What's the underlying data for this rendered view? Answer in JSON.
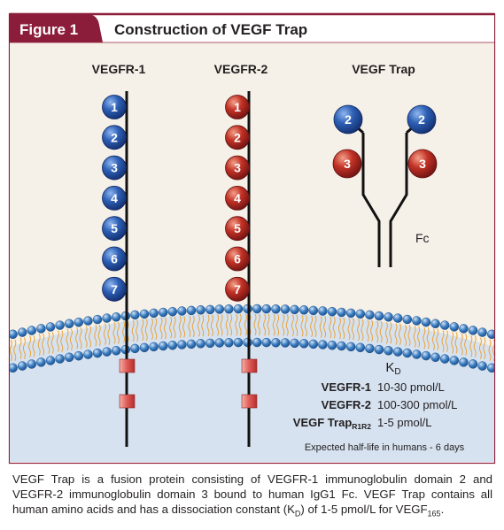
{
  "header": {
    "badge": "Figure 1",
    "title": "Construction of VEGF Trap"
  },
  "labels": {
    "vegfr1": "VEGFR-1",
    "vegfr2": "VEGFR-2",
    "trap": "VEGF Trap",
    "fc": "Fc"
  },
  "domains_r1": [
    "1",
    "2",
    "3",
    "4",
    "5",
    "6",
    "7"
  ],
  "domains_r2": [
    "1",
    "2",
    "3",
    "4",
    "5",
    "6",
    "7"
  ],
  "trap_domains": {
    "left_top": "2",
    "right_top": "2",
    "left_bottom": "3",
    "right_bottom": "3"
  },
  "kd": {
    "heading": "K",
    "heading_sub": "D",
    "rows": [
      {
        "name": "VEGFR-1",
        "name_sub": "",
        "value": "10-30 pmol/L"
      },
      {
        "name": "VEGFR-2",
        "name_sub": "",
        "value": "100-300 pmol/L"
      },
      {
        "name": "VEGF Trap",
        "name_sub": "R1R2",
        "value": "1-5 pmol/L"
      }
    ],
    "half_life": "Expected half-life in humans - 6 days"
  },
  "caption": {
    "part1": "VEGF Trap is a fusion protein consisting of VEGFR-1 immunoglobulin domain 2 and VEGFR-2 immunoglobulin domain 3 bound to human IgG1 Fc. VEGF Trap contains all human amino acids and has a dissociation constant (K",
    "sub1": "D",
    "part2": ") of 1-5 pmol/L for VEGF",
    "sub2": "165",
    "part3": "."
  },
  "colors": {
    "maroon": "#8c1d3a",
    "blue_domain": "#1f4fa3",
    "red_domain": "#b8282a",
    "cell_bg": "#d6e2f0",
    "top_bg": "#f6f1e8",
    "lipid_head": "#2f6fb5",
    "tail": "#e9a33a"
  }
}
